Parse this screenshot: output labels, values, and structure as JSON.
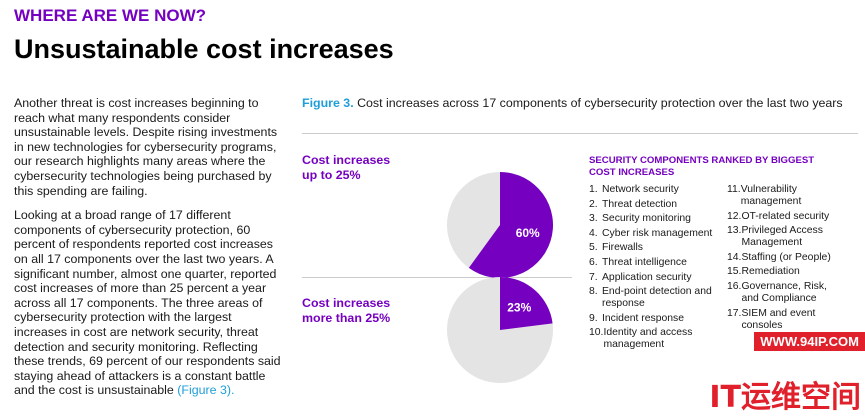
{
  "header": {
    "kicker": "WHERE ARE WE NOW?",
    "title": "Unsustainable cost increases"
  },
  "body": {
    "paragraphs": [
      "Another threat is cost increases beginning to reach what many respondents consider unsustainable levels. Despite rising investments in new technologies for cybersecurity programs, our research highlights many areas where the cybersecurity technologies being purchased by this spending are failing.",
      "Looking at a broad range of 17 different components of cybersecurity protection, 60 percent of respondents reported cost increases on all 17 components over the last two years. A significant number, almost one quarter, reported cost increases of more than 25 percent a year across all 17 components. The three areas of cybersecurity protection with the largest increases in cost are network security, threat detection and security monitoring. Reflecting these trends, 69 percent of our respondents said staying ahead of attackers is a constant battle and the cost is unsustainable"
    ],
    "link": "(Figure 3)."
  },
  "figure": {
    "label": "Figure 3.",
    "caption": "Cost increases across 17 components of cybersecurity protection over the last two years"
  },
  "chart_data": [
    {
      "type": "pie",
      "title": "Cost increases up to 25%",
      "values": [
        60
      ],
      "value_labels": [
        "60%"
      ],
      "color": "#7500c0"
    },
    {
      "type": "pie",
      "title": "Cost increases more than 25%",
      "values": [
        23
      ],
      "value_labels": [
        "23%"
      ],
      "color": "#7500c0"
    }
  ],
  "ranking": {
    "title": "SECURITY COMPONENTS RANKED BY BIGGEST COST INCREASES",
    "items": [
      {
        "number": "1.",
        "text": "Network security"
      },
      {
        "number": "2.",
        "text": "Threat detection"
      },
      {
        "number": "3.",
        "text": "Security monitoring"
      },
      {
        "number": "4.",
        "text": "Cyber risk management"
      },
      {
        "number": "5.",
        "text": "Firewalls"
      },
      {
        "number": "6.",
        "text": "Threat intelligence"
      },
      {
        "number": "7.",
        "text": "Application security"
      },
      {
        "number": "8.",
        "text": "End-point detection and response"
      },
      {
        "number": "9.",
        "text": "Incident response"
      },
      {
        "number": "10.",
        "text": "Identity and access management"
      },
      {
        "number": "11.",
        "text": "Vulnerability management"
      },
      {
        "number": "12.",
        "text": "OT-related security"
      },
      {
        "number": "13.",
        "text": "Privileged Access Management"
      },
      {
        "number": "14.",
        "text": "Staffing (or People)"
      },
      {
        "number": "15.",
        "text": "Remediation"
      },
      {
        "number": "16.",
        "text": "Governance, Risk, and Compliance"
      },
      {
        "number": "17.",
        "text": "SIEM and event consoles"
      }
    ]
  },
  "watermark": {
    "url": "WWW.94IP.COM",
    "brand": "IT运维空间"
  }
}
